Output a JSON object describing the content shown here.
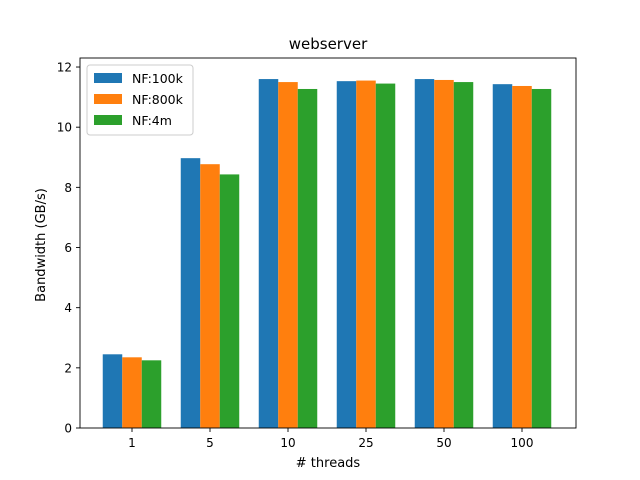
{
  "chart_data": {
    "type": "bar",
    "title": "webserver",
    "xlabel": "# threads",
    "ylabel": "Bandwidth (GB/s)",
    "categories": [
      "1",
      "5",
      "10",
      "25",
      "50",
      "100"
    ],
    "ylim": [
      0,
      12.3
    ],
    "yticks": [
      0,
      2,
      4,
      6,
      8,
      10,
      12
    ],
    "grid": false,
    "legend_position": "top-left",
    "series": [
      {
        "name": "NF:100k",
        "color": "#1f77b4",
        "values": [
          2.45,
          8.97,
          11.6,
          11.53,
          11.6,
          11.43
        ]
      },
      {
        "name": "NF:800k",
        "color": "#ff7f0e",
        "values": [
          2.35,
          8.77,
          11.5,
          11.55,
          11.57,
          11.37
        ]
      },
      {
        "name": "NF:4m",
        "color": "#2ca02c",
        "values": [
          2.25,
          8.43,
          11.27,
          11.45,
          11.5,
          11.27
        ]
      }
    ]
  }
}
